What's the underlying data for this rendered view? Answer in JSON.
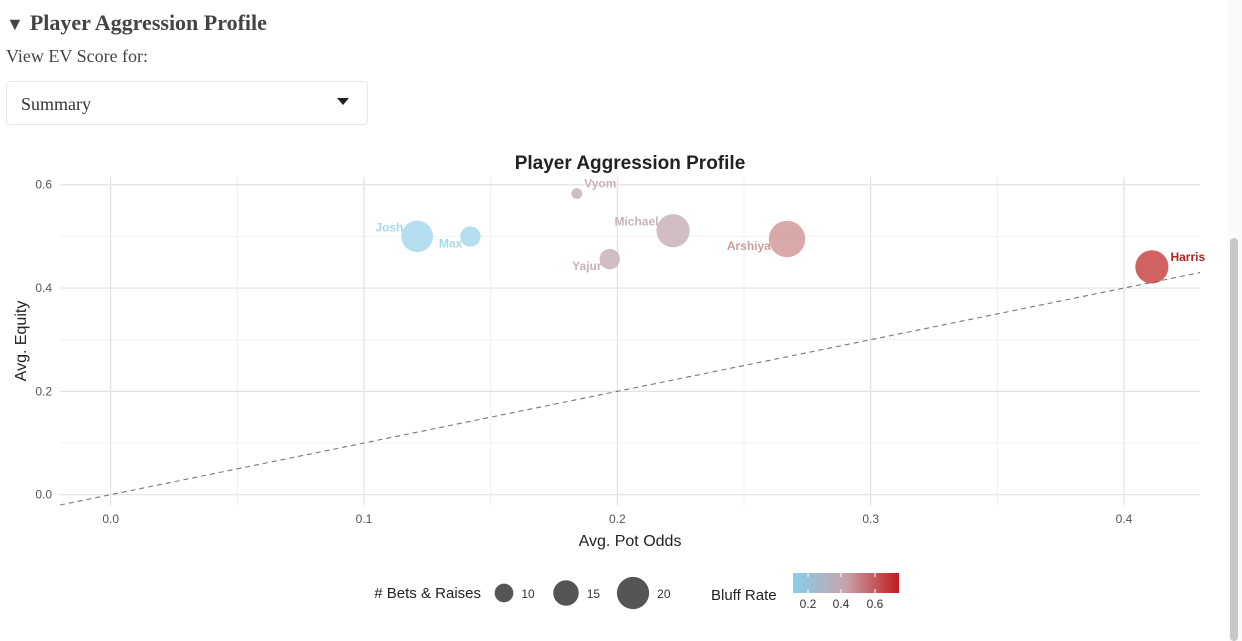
{
  "section": {
    "title": "Player Aggression Profile",
    "toggle_icon": "triangle-down-icon"
  },
  "view": {
    "label": "View EV Score for:"
  },
  "select": {
    "value": "Summary",
    "icon": "chevron-down-icon"
  },
  "chart_data": {
    "type": "scatter",
    "title": "Player Aggression Profile",
    "xlabel": "Avg. Pot Odds",
    "ylabel": "Avg. Equity",
    "xlim": [
      -0.02,
      0.43
    ],
    "ylim": [
      -0.02,
      0.615
    ],
    "x_ticks": [
      0.0,
      0.1,
      0.2,
      0.3,
      0.4
    ],
    "x_tick_labels": [
      "0.0",
      "0.1",
      "0.2",
      "0.3",
      "0.4"
    ],
    "y_ticks": [
      0.0,
      0.2,
      0.4,
      0.6
    ],
    "y_tick_labels": [
      "0.0",
      "0.2",
      "0.4",
      "0.6"
    ],
    "grid": true,
    "reference_line": {
      "type": "y=x",
      "style": "dashed"
    },
    "points": [
      {
        "name": "Josh",
        "x": 0.121,
        "y": 0.5,
        "bets_raises": 16,
        "bluff_rate": 0.05,
        "color": "#a9d8ee",
        "label_side": "left"
      },
      {
        "name": "Max",
        "x": 0.142,
        "y": 0.5,
        "bets_raises": 9,
        "bluff_rate": 0.05,
        "color": "#a9d8ee",
        "label_side": "left-below"
      },
      {
        "name": "Vyom",
        "x": 0.184,
        "y": 0.583,
        "bets_raises": 3,
        "bluff_rate": 0.38,
        "color": "#c9b2bb",
        "label_side": "right-above"
      },
      {
        "name": "Yajur",
        "x": 0.197,
        "y": 0.456,
        "bets_raises": 9,
        "bluff_rate": 0.38,
        "color": "#c9b2bb",
        "label_side": "left-below"
      },
      {
        "name": "Michael",
        "x": 0.222,
        "y": 0.511,
        "bets_raises": 17,
        "bluff_rate": 0.38,
        "color": "#c9b2bb",
        "label_side": "left"
      },
      {
        "name": "Arshiya",
        "x": 0.267,
        "y": 0.495,
        "bets_raises": 19,
        "bluff_rate": 0.5,
        "color": "#d29a9a",
        "label_side": "left-below"
      },
      {
        "name": "Harris",
        "x": 0.411,
        "y": 0.441,
        "bets_raises": 17,
        "bluff_rate": 0.72,
        "color": "#c84646",
        "label_side": "right-above"
      }
    ],
    "legend": {
      "size_title": "# Bets & Raises",
      "size_values": [
        10,
        15,
        20
      ],
      "size_labels": [
        "10",
        "15",
        "20"
      ],
      "color_title": "Bluff Rate",
      "color_ticks": [
        0.2,
        0.4,
        0.6
      ],
      "color_tick_labels": [
        "0.2",
        "0.4",
        "0.6"
      ],
      "color_low": "#87ceeb",
      "color_mid": "#c8a2aa",
      "color_high": "#c01c1c",
      "legend_point_color": "#555555",
      "placement": "bottom"
    }
  }
}
